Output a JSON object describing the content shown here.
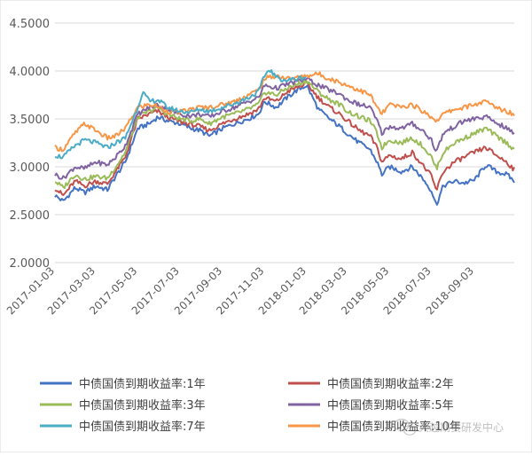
{
  "chart_data": {
    "type": "line",
    "title": "",
    "xlabel": "",
    "ylabel": "",
    "ylim": [
      2.0,
      4.5
    ],
    "y_ticks": [
      "2.0000",
      "2.5000",
      "3.0000",
      "3.5000",
      "4.0000",
      "4.5000"
    ],
    "x_range": [
      "2017-01-03",
      "2018-10-31"
    ],
    "x_ticks": [
      "2017-01-03",
      "2017-03-03",
      "2017-05-03",
      "2017-07-03",
      "2017-09-03",
      "2017-11-03",
      "2018-01-03",
      "2018-03-03",
      "2018-05-03",
      "2018-07-03",
      "2018-09-03"
    ],
    "grid": true,
    "legend_position": "bottom",
    "series": [
      {
        "name": "中债国债到期收益率:1年",
        "color": "#4472C4",
        "points": [
          [
            "2017-01-03",
            2.7
          ],
          [
            "2017-01-15",
            2.64
          ],
          [
            "2017-02-01",
            2.78
          ],
          [
            "2017-02-15",
            2.73
          ],
          [
            "2017-03-03",
            2.8
          ],
          [
            "2017-03-20",
            2.76
          ],
          [
            "2017-04-01",
            2.9
          ],
          [
            "2017-04-15",
            3.05
          ],
          [
            "2017-05-03",
            3.4
          ],
          [
            "2017-05-20",
            3.45
          ],
          [
            "2017-06-01",
            3.52
          ],
          [
            "2017-06-15",
            3.48
          ],
          [
            "2017-07-03",
            3.45
          ],
          [
            "2017-07-20",
            3.4
          ],
          [
            "2017-08-01",
            3.38
          ],
          [
            "2017-08-15",
            3.32
          ],
          [
            "2017-09-03",
            3.4
          ],
          [
            "2017-09-20",
            3.45
          ],
          [
            "2017-10-10",
            3.5
          ],
          [
            "2017-10-25",
            3.55
          ],
          [
            "2017-11-03",
            3.68
          ],
          [
            "2017-11-20",
            3.62
          ],
          [
            "2017-12-05",
            3.72
          ],
          [
            "2017-12-20",
            3.8
          ],
          [
            "2018-01-03",
            3.85
          ],
          [
            "2018-01-20",
            3.6
          ],
          [
            "2018-02-05",
            3.5
          ],
          [
            "2018-02-20",
            3.42
          ],
          [
            "2018-03-03",
            3.35
          ],
          [
            "2018-03-20",
            3.25
          ],
          [
            "2018-04-05",
            3.18
          ],
          [
            "2018-04-15",
            3.05
          ],
          [
            "2018-04-22",
            2.92
          ],
          [
            "2018-05-03",
            3.0
          ],
          [
            "2018-05-20",
            2.95
          ],
          [
            "2018-06-05",
            3.0
          ],
          [
            "2018-06-20",
            2.88
          ],
          [
            "2018-07-03",
            2.75
          ],
          [
            "2018-07-10",
            2.6
          ],
          [
            "2018-07-20",
            2.8
          ],
          [
            "2018-08-05",
            2.85
          ],
          [
            "2018-08-20",
            2.83
          ],
          [
            "2018-09-03",
            2.86
          ],
          [
            "2018-09-20",
            3.02
          ],
          [
            "2018-10-05",
            2.95
          ],
          [
            "2018-10-20",
            2.92
          ],
          [
            "2018-10-31",
            2.85
          ]
        ]
      },
      {
        "name": "中债国债到期收益率:2年",
        "color": "#C0504D",
        "points": [
          [
            "2017-01-03",
            2.78
          ],
          [
            "2017-01-15",
            2.7
          ],
          [
            "2017-02-01",
            2.85
          ],
          [
            "2017-02-15",
            2.8
          ],
          [
            "2017-03-03",
            2.85
          ],
          [
            "2017-03-20",
            2.82
          ],
          [
            "2017-04-01",
            2.95
          ],
          [
            "2017-04-15",
            3.1
          ],
          [
            "2017-05-03",
            3.5
          ],
          [
            "2017-05-20",
            3.55
          ],
          [
            "2017-06-01",
            3.58
          ],
          [
            "2017-06-15",
            3.52
          ],
          [
            "2017-07-03",
            3.47
          ],
          [
            "2017-07-20",
            3.44
          ],
          [
            "2017-08-01",
            3.42
          ],
          [
            "2017-08-15",
            3.38
          ],
          [
            "2017-09-03",
            3.45
          ],
          [
            "2017-09-20",
            3.5
          ],
          [
            "2017-10-10",
            3.55
          ],
          [
            "2017-10-25",
            3.6
          ],
          [
            "2017-11-03",
            3.72
          ],
          [
            "2017-11-20",
            3.68
          ],
          [
            "2017-12-05",
            3.78
          ],
          [
            "2017-12-20",
            3.83
          ],
          [
            "2018-01-03",
            3.87
          ],
          [
            "2018-01-20",
            3.72
          ],
          [
            "2018-02-05",
            3.62
          ],
          [
            "2018-02-20",
            3.55
          ],
          [
            "2018-03-03",
            3.48
          ],
          [
            "2018-03-20",
            3.38
          ],
          [
            "2018-04-05",
            3.32
          ],
          [
            "2018-04-15",
            3.2
          ],
          [
            "2018-04-22",
            3.05
          ],
          [
            "2018-05-03",
            3.12
          ],
          [
            "2018-05-20",
            3.08
          ],
          [
            "2018-06-05",
            3.15
          ],
          [
            "2018-06-20",
            3.02
          ],
          [
            "2018-07-03",
            2.9
          ],
          [
            "2018-07-10",
            2.75
          ],
          [
            "2018-07-20",
            2.95
          ],
          [
            "2018-08-05",
            3.05
          ],
          [
            "2018-08-20",
            3.1
          ],
          [
            "2018-09-03",
            3.15
          ],
          [
            "2018-09-20",
            3.2
          ],
          [
            "2018-10-05",
            3.12
          ],
          [
            "2018-10-20",
            3.05
          ],
          [
            "2018-10-31",
            2.97
          ]
        ]
      },
      {
        "name": "中债国债到期收益率:3年",
        "color": "#9BBB59",
        "points": [
          [
            "2017-01-03",
            2.85
          ],
          [
            "2017-01-15",
            2.78
          ],
          [
            "2017-02-01",
            2.92
          ],
          [
            "2017-02-15",
            2.87
          ],
          [
            "2017-03-03",
            2.9
          ],
          [
            "2017-03-20",
            2.88
          ],
          [
            "2017-04-01",
            3.0
          ],
          [
            "2017-04-15",
            3.15
          ],
          [
            "2017-05-03",
            3.52
          ],
          [
            "2017-05-20",
            3.58
          ],
          [
            "2017-06-01",
            3.62
          ],
          [
            "2017-06-15",
            3.55
          ],
          [
            "2017-07-03",
            3.5
          ],
          [
            "2017-07-20",
            3.48
          ],
          [
            "2017-08-01",
            3.5
          ],
          [
            "2017-08-15",
            3.45
          ],
          [
            "2017-09-03",
            3.52
          ],
          [
            "2017-09-20",
            3.55
          ],
          [
            "2017-10-10",
            3.6
          ],
          [
            "2017-10-25",
            3.65
          ],
          [
            "2017-11-03",
            3.78
          ],
          [
            "2017-11-20",
            3.75
          ],
          [
            "2017-12-05",
            3.82
          ],
          [
            "2017-12-20",
            3.86
          ],
          [
            "2018-01-03",
            3.9
          ],
          [
            "2018-01-20",
            3.78
          ],
          [
            "2018-02-05",
            3.7
          ],
          [
            "2018-02-20",
            3.65
          ],
          [
            "2018-03-03",
            3.58
          ],
          [
            "2018-03-20",
            3.52
          ],
          [
            "2018-04-05",
            3.48
          ],
          [
            "2018-04-15",
            3.35
          ],
          [
            "2018-04-22",
            3.2
          ],
          [
            "2018-05-03",
            3.28
          ],
          [
            "2018-05-20",
            3.25
          ],
          [
            "2018-06-05",
            3.3
          ],
          [
            "2018-06-20",
            3.22
          ],
          [
            "2018-07-03",
            3.1
          ],
          [
            "2018-07-10",
            2.98
          ],
          [
            "2018-07-20",
            3.15
          ],
          [
            "2018-08-05",
            3.25
          ],
          [
            "2018-08-20",
            3.3
          ],
          [
            "2018-09-03",
            3.35
          ],
          [
            "2018-09-20",
            3.4
          ],
          [
            "2018-10-05",
            3.32
          ],
          [
            "2018-10-20",
            3.25
          ],
          [
            "2018-10-31",
            3.18
          ]
        ]
      },
      {
        "name": "中债国债到期收益率:5年",
        "color": "#8064A2",
        "points": [
          [
            "2017-01-03",
            2.92
          ],
          [
            "2017-01-15",
            2.88
          ],
          [
            "2017-02-01",
            3.0
          ],
          [
            "2017-02-15",
            2.98
          ],
          [
            "2017-03-03",
            3.05
          ],
          [
            "2017-03-20",
            3.02
          ],
          [
            "2017-04-01",
            3.1
          ],
          [
            "2017-04-15",
            3.22
          ],
          [
            "2017-05-03",
            3.55
          ],
          [
            "2017-05-20",
            3.62
          ],
          [
            "2017-06-01",
            3.65
          ],
          [
            "2017-06-15",
            3.6
          ],
          [
            "2017-07-03",
            3.55
          ],
          [
            "2017-07-20",
            3.53
          ],
          [
            "2017-08-01",
            3.55
          ],
          [
            "2017-08-15",
            3.52
          ],
          [
            "2017-09-03",
            3.58
          ],
          [
            "2017-09-20",
            3.62
          ],
          [
            "2017-10-10",
            3.68
          ],
          [
            "2017-10-25",
            3.72
          ],
          [
            "2017-11-03",
            3.85
          ],
          [
            "2017-11-20",
            3.82
          ],
          [
            "2017-12-05",
            3.86
          ],
          [
            "2017-12-20",
            3.89
          ],
          [
            "2018-01-03",
            3.92
          ],
          [
            "2018-01-20",
            3.85
          ],
          [
            "2018-02-05",
            3.8
          ],
          [
            "2018-02-20",
            3.76
          ],
          [
            "2018-03-03",
            3.7
          ],
          [
            "2018-03-20",
            3.65
          ],
          [
            "2018-04-05",
            3.62
          ],
          [
            "2018-04-15",
            3.48
          ],
          [
            "2018-04-22",
            3.35
          ],
          [
            "2018-05-03",
            3.42
          ],
          [
            "2018-05-20",
            3.4
          ],
          [
            "2018-06-05",
            3.45
          ],
          [
            "2018-06-20",
            3.38
          ],
          [
            "2018-07-03",
            3.28
          ],
          [
            "2018-07-10",
            3.15
          ],
          [
            "2018-07-20",
            3.35
          ],
          [
            "2018-08-05",
            3.42
          ],
          [
            "2018-08-20",
            3.48
          ],
          [
            "2018-09-03",
            3.5
          ],
          [
            "2018-09-20",
            3.52
          ],
          [
            "2018-10-05",
            3.46
          ],
          [
            "2018-10-20",
            3.4
          ],
          [
            "2018-10-31",
            3.35
          ]
        ]
      },
      {
        "name": "中债国债到期收益率:7年",
        "color": "#4BACC6",
        "points": [
          [
            "2017-01-03",
            3.12
          ],
          [
            "2017-01-15",
            3.1
          ],
          [
            "2017-02-01",
            3.22
          ],
          [
            "2017-02-15",
            3.28
          ],
          [
            "2017-03-03",
            3.25
          ],
          [
            "2017-03-20",
            3.2
          ],
          [
            "2017-04-01",
            3.25
          ],
          [
            "2017-04-15",
            3.3
          ],
          [
            "2017-05-03",
            3.62
          ],
          [
            "2017-05-10",
            3.78
          ],
          [
            "2017-05-20",
            3.68
          ],
          [
            "2017-06-01",
            3.7
          ],
          [
            "2017-06-15",
            3.62
          ],
          [
            "2017-07-03",
            3.58
          ],
          [
            "2017-07-20",
            3.57
          ],
          [
            "2017-08-01",
            3.6
          ],
          [
            "2017-08-15",
            3.58
          ],
          [
            "2017-09-03",
            3.62
          ],
          [
            "2017-09-20",
            3.66
          ],
          [
            "2017-10-10",
            3.72
          ],
          [
            "2017-10-25",
            3.78
          ],
          [
            "2017-11-03",
            3.95
          ],
          [
            "2017-11-10",
            4.02
          ],
          [
            "2017-11-20",
            3.93
          ],
          [
            "2017-12-05",
            3.9
          ],
          [
            "2017-12-20",
            3.92
          ],
          [
            "2018-01-03",
            3.94
          ]
        ]
      },
      {
        "name": "中债国债到期收益率:10年",
        "color": "#F79646",
        "points": [
          [
            "2017-01-03",
            3.2
          ],
          [
            "2017-01-15",
            3.18
          ],
          [
            "2017-02-01",
            3.35
          ],
          [
            "2017-02-15",
            3.45
          ],
          [
            "2017-03-03",
            3.38
          ],
          [
            "2017-03-20",
            3.3
          ],
          [
            "2017-04-01",
            3.32
          ],
          [
            "2017-04-15",
            3.4
          ],
          [
            "2017-05-03",
            3.62
          ],
          [
            "2017-05-20",
            3.65
          ],
          [
            "2017-06-01",
            3.63
          ],
          [
            "2017-06-15",
            3.58
          ],
          [
            "2017-07-03",
            3.57
          ],
          [
            "2017-07-20",
            3.6
          ],
          [
            "2017-08-01",
            3.62
          ],
          [
            "2017-08-15",
            3.62
          ],
          [
            "2017-09-03",
            3.65
          ],
          [
            "2017-09-20",
            3.68
          ],
          [
            "2017-10-10",
            3.75
          ],
          [
            "2017-10-25",
            3.8
          ],
          [
            "2017-11-03",
            3.92
          ],
          [
            "2017-11-20",
            3.95
          ],
          [
            "2017-12-05",
            3.92
          ],
          [
            "2017-12-20",
            3.93
          ],
          [
            "2018-01-03",
            3.95
          ],
          [
            "2018-01-20",
            3.97
          ],
          [
            "2018-02-05",
            3.92
          ],
          [
            "2018-02-20",
            3.88
          ],
          [
            "2018-03-03",
            3.85
          ],
          [
            "2018-03-20",
            3.8
          ],
          [
            "2018-04-05",
            3.75
          ],
          [
            "2018-04-15",
            3.62
          ],
          [
            "2018-04-22",
            3.55
          ],
          [
            "2018-05-03",
            3.65
          ],
          [
            "2018-05-20",
            3.62
          ],
          [
            "2018-06-05",
            3.65
          ],
          [
            "2018-06-20",
            3.58
          ],
          [
            "2018-07-03",
            3.52
          ],
          [
            "2018-07-10",
            3.48
          ],
          [
            "2018-07-20",
            3.55
          ],
          [
            "2018-08-05",
            3.6
          ],
          [
            "2018-08-20",
            3.62
          ],
          [
            "2018-09-03",
            3.65
          ],
          [
            "2018-09-20",
            3.68
          ],
          [
            "2018-10-05",
            3.62
          ],
          [
            "2018-10-20",
            3.58
          ],
          [
            "2018-10-31",
            3.55
          ]
        ]
      }
    ],
    "legend": [
      "中债国债到期收益率:1年",
      "中债国债到期收益率:2年",
      "中债国债到期收益率:3年",
      "中债国债到期收益率:5年",
      "中债国债到期收益率:7年",
      "中债国债到期收益率:10年"
    ]
  },
  "watermark": {
    "text": "大越期货研发中心",
    "icon": "wechat-logo-icon"
  }
}
